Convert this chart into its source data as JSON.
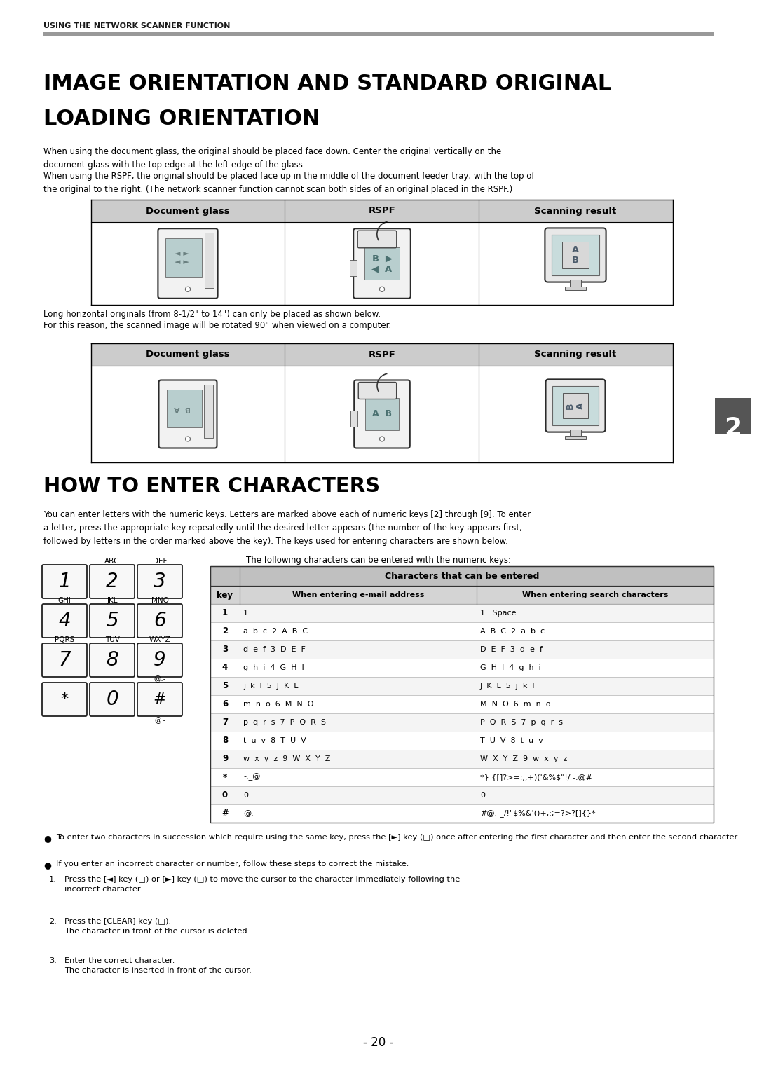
{
  "page_bg": "#ffffff",
  "header_text": "USING THE NETWORK SCANNER FUNCTION",
  "section1_title_line1": "IMAGE ORIENTATION AND STANDARD ORIGINAL",
  "section1_title_line2": "LOADING ORIENTATION",
  "section1_body1": "When using the document glass, the original should be placed face down. Center the original vertically on the\ndocument glass with the top edge at the left edge of the glass.",
  "section1_body2": "When using the RSPF, the original should be placed face up in the middle of the document feeder tray, with the top of\nthe original to the right. (The network scanner function cannot scan both sides of an original placed in the RSPF.)",
  "table1_headers": [
    "Document glass",
    "RSPF",
    "Scanning result"
  ],
  "section1_note1": "Long horizontal originals (from 8-1/2\" to 14\") can only be placed as shown below.",
  "section1_note2": "For this reason, the scanned image will be rotated 90° when viewed on a computer.",
  "table2_headers": [
    "Document glass",
    "RSPF",
    "Scanning result"
  ],
  "section2_title": "HOW TO ENTER CHARACTERS",
  "section2_body": "You can enter letters with the numeric keys. Letters are marked above each of numeric keys [2] through [9]. To enter\na letter, press the appropriate key repeatedly until the desired letter appears (the number of the key appears first,\nfollowed by letters in the order marked above the key). The keys used for entering characters are shown below.",
  "keypad_caption": "The following characters can be entered with the numeric keys:",
  "char_table_title": "Characters that can be entered",
  "char_table_col1": "key",
  "char_table_col2": "When entering e-mail address",
  "char_table_col3": "When entering search characters",
  "char_table_rows": [
    [
      "1",
      "1",
      "1   Space"
    ],
    [
      "2",
      "a  b  c  2  A  B  C",
      "A  B  C  2  a  b  c"
    ],
    [
      "3",
      "d  e  f  3  D  E  F",
      "D  E  F  3  d  e  f"
    ],
    [
      "4",
      "g  h  i  4  G  H  I",
      "G  H  I  4  g  h  i"
    ],
    [
      "5",
      "j  k  l  5  J  K  L",
      "J  K  L  5  j  k  l"
    ],
    [
      "6",
      "m  n  o  6  M  N  O",
      "M  N  O  6  m  n  o"
    ],
    [
      "7",
      "p  q  r  s  7  P  Q  R  S",
      "P  Q  R  S  7  p  q  r  s"
    ],
    [
      "8",
      "t  u  v  8  T  U  V",
      "T  U  V  8  t  u  v"
    ],
    [
      "9",
      "w  x  y  z  9  W  X  Y  Z",
      "W  X  Y  Z  9  w  x  y  z"
    ],
    [
      "*",
      "-._@",
      "*} {[]?>=:;,+)('&%$\"!/ -.@#"
    ],
    [
      "0",
      "0",
      "0"
    ],
    [
      "#",
      "@.-",
      "#@.-_/!\"$%&'()+,:;=?>?[]{}*"
    ]
  ],
  "keypad_keys": [
    {
      "label": "1",
      "above": "",
      "italic": true
    },
    {
      "label": "2",
      "above": "ABC",
      "italic": true
    },
    {
      "label": "3",
      "above": "DEF",
      "italic": true
    },
    {
      "label": "4",
      "above": "GHI",
      "italic": true
    },
    {
      "label": "5",
      "above": "JKL",
      "italic": true
    },
    {
      "label": "6",
      "above": "MNO",
      "italic": true
    },
    {
      "label": "7",
      "above": "PQRS",
      "italic": true
    },
    {
      "label": "8",
      "above": "TUV",
      "italic": true
    },
    {
      "label": "9",
      "above": "WXYZ",
      "italic": true
    },
    {
      "label": "*",
      "above": "",
      "italic": false
    },
    {
      "label": "0",
      "above": "",
      "italic": true
    },
    {
      "label": "#",
      "above": "@.-",
      "italic": false
    }
  ],
  "bullet1": "To enter two characters in succession which require using the same key, press the [►] key (□) once after entering the first character and then enter the second character.",
  "bullet2": "If you enter an incorrect character or number, follow these steps to correct the mistake.",
  "step1_num": "1.",
  "step1_text": "Press the [◄] key (□) or [►] key (□) to move the cursor to the character immediately following the\nincorrect character.",
  "step2_num": "2.",
  "step2_text": "Press the [CLEAR] key (□).\nThe character in front of the cursor is deleted.",
  "step3_num": "3.",
  "step3_text": "Enter the correct character.\nThe character is inserted in front of the cursor.",
  "page_num": "- 20 -",
  "section_badge": "2"
}
